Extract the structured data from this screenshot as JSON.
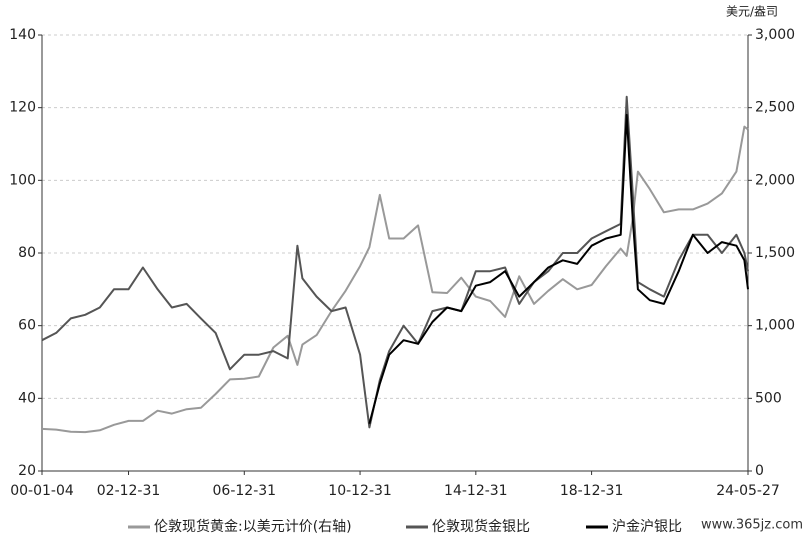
{
  "chart_data": {
    "type": "line",
    "y2_label": "美元/盎司",
    "x": [
      "00-01-04",
      "00-07-01",
      "01-01-02",
      "01-07-02",
      "02-01-02",
      "02-07-01",
      "02-12-31",
      "03-07-01",
      "04-01-02",
      "04-07-01",
      "05-01-03",
      "05-07-01",
      "06-01-03",
      "06-07-03",
      "06-12-31",
      "07-07-02",
      "08-01-02",
      "08-07-01",
      "08-10-31",
      "09-01-02",
      "09-07-01",
      "10-01-04",
      "10-07-01",
      "10-12-31",
      "11-04-28",
      "11-09-06",
      "12-01-03",
      "12-07-02",
      "13-01-02",
      "13-07-01",
      "14-01-02",
      "14-07-01",
      "14-12-31",
      "15-07-01",
      "16-01-04",
      "16-07-01",
      "17-01-03",
      "17-07-03",
      "18-01-02",
      "18-07-02",
      "18-12-31",
      "19-07-01",
      "20-01-02",
      "20-03-18",
      "20-06-01",
      "20-08-06",
      "21-01-04",
      "21-07-01",
      "22-01-04",
      "22-07-01",
      "23-01-03",
      "23-07-03",
      "24-01-02",
      "24-04-12",
      "24-05-27"
    ],
    "series": [
      {
        "name": "伦敦现货黄金:以美元计价(右轴)",
        "color": "#999999",
        "axis": "y2",
        "values": [
          290,
          285,
          270,
          268,
          280,
          318,
          345,
          345,
          415,
          395,
          425,
          435,
          530,
          630,
          635,
          650,
          850,
          930,
          730,
          870,
          935,
          1100,
          1240,
          1410,
          1540,
          1900,
          1600,
          1600,
          1690,
          1230,
          1225,
          1330,
          1200,
          1170,
          1060,
          1340,
          1150,
          1240,
          1320,
          1250,
          1280,
          1410,
          1530,
          1480,
          1730,
          2060,
          1940,
          1780,
          1800,
          1800,
          1840,
          1910,
          2060,
          2370,
          2350
        ]
      },
      {
        "name": "伦敦现货金银比",
        "color": "#555555",
        "values": [
          56,
          58,
          62,
          63,
          65,
          70,
          70,
          76,
          70,
          65,
          66,
          62,
          58,
          48,
          52,
          52,
          53,
          51,
          82,
          73,
          68,
          64,
          65,
          52,
          32,
          45,
          53,
          60,
          55,
          64,
          65,
          64,
          75,
          75,
          76,
          66,
          72,
          75,
          80,
          80,
          84,
          86,
          88,
          123,
          97,
          72,
          70,
          68,
          78,
          85,
          85,
          80,
          85,
          80,
          75
        ]
      },
      {
        "name": "沪金沪银比",
        "color": "#000000",
        "values": [
          null,
          null,
          null,
          null,
          null,
          null,
          null,
          null,
          null,
          null,
          null,
          null,
          null,
          null,
          null,
          null,
          null,
          null,
          null,
          null,
          null,
          null,
          null,
          null,
          33,
          44,
          52,
          56,
          55,
          61,
          65,
          64,
          71,
          72,
          75,
          68,
          72,
          76,
          78,
          77,
          82,
          84,
          85,
          118,
          90,
          70,
          67,
          66,
          75,
          85,
          80,
          83,
          82,
          78,
          70
        ]
      }
    ],
    "xlim": [
      "00-01-04",
      "24-05-27"
    ],
    "xticks": [
      "00-01-04",
      "02-12-31",
      "06-12-31",
      "10-12-31",
      "14-12-31",
      "18-12-31",
      "24-05-27"
    ],
    "ylim": [
      20,
      140
    ],
    "yticks": [
      20,
      40,
      60,
      80,
      100,
      120,
      140
    ],
    "y2lim": [
      0,
      3000
    ],
    "y2ticks": [
      0,
      500,
      {
        "value": 1000,
        "label": "1,000"
      },
      {
        "value": 1500,
        "label": "1,500"
      },
      {
        "value": 2000,
        "label": "2,000"
      },
      {
        "value": 2500,
        "label": "2,500"
      },
      {
        "value": 3000,
        "label": "3,000"
      }
    ],
    "grid": true,
    "legend": "bottom",
    "watermark": "www.365jz.com"
  }
}
